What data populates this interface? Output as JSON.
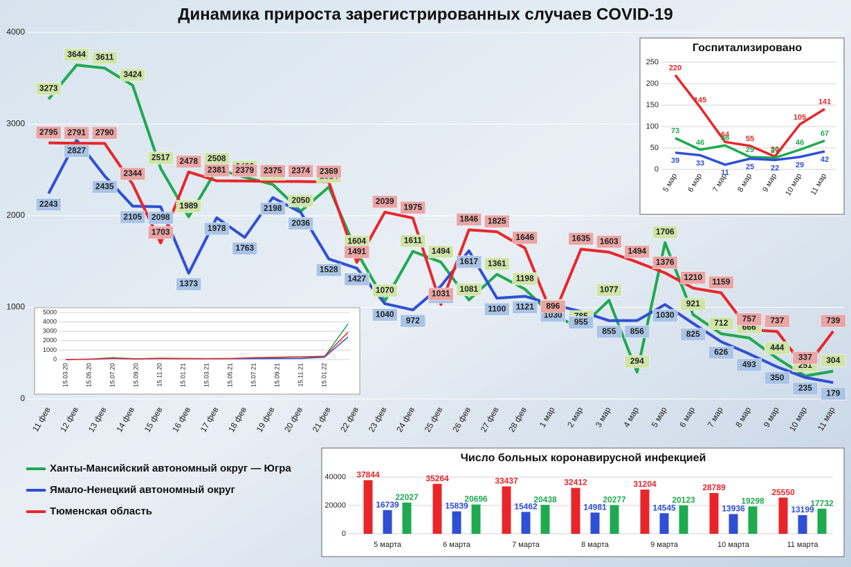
{
  "chart_data": [
    {
      "type": "line",
      "title": "Динамика прироста зарегистрированных случаев COVID-19",
      "categories": [
        "11 фев",
        "12 фев",
        "13 фев",
        "14 фев",
        "15 фев",
        "16 фев",
        "17 фев",
        "18 фев",
        "19 фев",
        "20 фев",
        "21 фев",
        "22 фев",
        "23 фев",
        "24 фев",
        "25 фев",
        "26 фев",
        "27 фев",
        "28 фев",
        "1 мар",
        "2 мар",
        "3 мар",
        "4 мар",
        "5 мар",
        "6 мар",
        "7 мар",
        "8 мар",
        "9 мар",
        "10 мар",
        "11 мар"
      ],
      "series": [
        {
          "name": "Ханты-Мансийский автономный округ — Югра",
          "color": "#1faa4f",
          "values": [
            3273,
            3644,
            3611,
            3424,
            2517,
            1989,
            2508,
            2422,
            2341,
            2050,
            2314,
            1604,
            1070,
            1611,
            1494,
            1081,
            1361,
            1198,
            906,
            785,
            1077,
            294,
            1706,
            921,
            712,
            666,
            444,
            251,
            304
          ]
        },
        {
          "name": "Ямало-Ненецкий автономный округ",
          "color": "#2e4fd6",
          "values": [
            2243,
            2827,
            2435,
            2105,
            2098,
            1373,
            1978,
            1763,
            2198,
            2036,
            1528,
            1427,
            1040,
            972,
            1232,
            1617,
            1100,
            1121,
            1030,
            955,
            855,
            856,
            1030,
            825,
            626,
            493,
            350,
            235,
            179
          ]
        },
        {
          "name": "Тюменская область",
          "color": "#e8262a",
          "values": [
            2795,
            2791,
            2790,
            2344,
            1703,
            2478,
            2381,
            2379,
            2375,
            2374,
            2369,
            1491,
            2039,
            1975,
            1031,
            1846,
            1825,
            1646,
            896,
            1635,
            1603,
            1494,
            1376,
            1210,
            1159,
            757,
            737,
            337,
            739
          ]
        }
      ],
      "ylim": [
        0,
        4000
      ],
      "yticks": [
        0,
        1000,
        2000,
        3000,
        4000
      ],
      "grid": true
    },
    {
      "type": "line",
      "categories": [
        "15.03.20",
        "15.05.20",
        "15.07.20",
        "15.09.20",
        "15.11.20",
        "15.01.21",
        "15.03.21",
        "15.05.21",
        "15.07.21",
        "15.09.21",
        "15.11.21",
        "15.01.22",
        null
      ],
      "series": [
        {
          "color": "#1faa4f",
          "values": [
            0,
            40,
            200,
            80,
            150,
            120,
            100,
            120,
            130,
            140,
            150,
            300,
            3800
          ]
        },
        {
          "color": "#2e4fd6",
          "values": [
            0,
            30,
            120,
            60,
            100,
            90,
            80,
            90,
            100,
            110,
            120,
            250,
            2400
          ]
        },
        {
          "color": "#e8262a",
          "values": [
            0,
            50,
            150,
            70,
            130,
            110,
            90,
            110,
            200,
            250,
            300,
            350,
            2900
          ]
        }
      ],
      "ylim": [
        0,
        5000
      ],
      "yticks": [
        0,
        1000,
        2000,
        3000,
        4000,
        5000
      ],
      "grid": true
    },
    {
      "type": "line",
      "title": "Госпитализировано",
      "categories": [
        "5 мар",
        "6 мар",
        "7 мар",
        "8 мар",
        "9 мар",
        "10 мар",
        "11 мар"
      ],
      "series": [
        {
          "color": "#e8262a",
          "values": [
            220,
            145,
            64,
            55,
            30,
            105,
            141
          ]
        },
        {
          "color": "#1faa4f",
          "values": [
            73,
            46,
            56,
            29,
            27,
            46,
            67
          ]
        },
        {
          "color": "#2e4fd6",
          "values": [
            39,
            33,
            11,
            25,
            22,
            29,
            42
          ]
        }
      ],
      "ylim": [
        0,
        250
      ],
      "yticks": [
        0,
        50,
        100,
        150,
        200,
        250
      ],
      "grid": true
    },
    {
      "type": "bar",
      "title": "Число больных  коронавирусной  инфекцией",
      "categories": [
        "5 марта",
        "6 марта",
        "7 марта",
        "8 марта",
        "9 марта",
        "10 марта",
        "11 марта"
      ],
      "series": [
        {
          "color": "#e8262a",
          "values": [
            37844,
            35264,
            33437,
            32412,
            31204,
            28789,
            25550
          ]
        },
        {
          "color": "#2e4fd6",
          "values": [
            16739,
            15839,
            15462,
            14981,
            14545,
            13936,
            13199
          ]
        },
        {
          "color": "#1faa4f",
          "values": [
            22027,
            20696,
            20438,
            20277,
            20123,
            19298,
            17732
          ]
        }
      ],
      "ylim": [
        0,
        40000
      ],
      "yticks": [
        0,
        20000,
        40000
      ],
      "grid": true
    }
  ]
}
